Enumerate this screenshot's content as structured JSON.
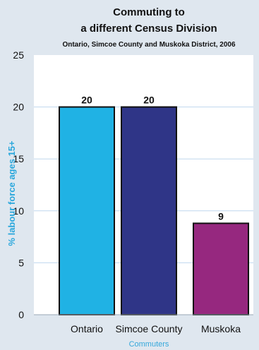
{
  "chart_data": {
    "type": "bar",
    "title_lines": [
      "Commuting to",
      "a different Census Division"
    ],
    "subtitle": "Ontario, Simcoe County and Muskoka District, 2006",
    "xlabel": "Commuters",
    "ylabel": "% labour force ages 15+",
    "categories": [
      "Ontario",
      "Simcoe County",
      "Muskoka"
    ],
    "values": [
      20,
      20,
      8.8
    ],
    "data_labels": [
      "20",
      "20",
      "9"
    ],
    "bar_colors": [
      "#20b2e4",
      "#2f3587",
      "#96287f"
    ],
    "yticks": [
      0,
      5,
      10,
      15,
      20,
      25
    ],
    "ylim": [
      0,
      25
    ],
    "grid": true,
    "legend": "none"
  },
  "colors": {
    "background": "#dfe7ef",
    "plot_background": "#ffffff",
    "grid": "#bfd7ee",
    "axis_label": "#2aa7dc",
    "bar_stroke": "#111111"
  }
}
